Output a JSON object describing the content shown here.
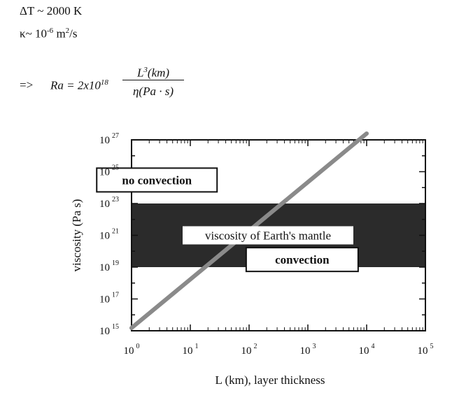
{
  "header": {
    "delta_t": "ΔT ~ 2000 K",
    "kappa_base": "κ~ 10",
    "kappa_exp": "-6",
    "kappa_unit": " m",
    "kappa_unit_exp": "2",
    "kappa_unit_tail": "/s",
    "formula_arrow": "=>",
    "formula_lhs": "Ra = 2x10",
    "formula_lhs_exp": "18",
    "formula_num_a": "L",
    "formula_num_exp": "3",
    "formula_num_b": "(km)",
    "formula_den": "η(Pa · s)"
  },
  "chart_data": {
    "type": "line",
    "title": "",
    "xlabel": "L (km), layer thickness",
    "ylabel": "viscosity (Pa s)",
    "xscale": "log",
    "yscale": "log",
    "xlim": [
      1,
      100000
    ],
    "ylim": [
      1000000000000000.0,
      1e+27
    ],
    "x_ticks": [
      {
        "base": "10",
        "exp": "0"
      },
      {
        "base": "10",
        "exp": "1"
      },
      {
        "base": "10",
        "exp": "2"
      },
      {
        "base": "10",
        "exp": "3"
      },
      {
        "base": "10",
        "exp": "4"
      },
      {
        "base": "10",
        "exp": "5"
      }
    ],
    "y_ticks": [
      {
        "base": "10",
        "exp": "15",
        "value": 1000000000000000.0
      },
      {
        "base": "10",
        "exp": "17",
        "value": 1e+17
      },
      {
        "base": "10",
        "exp": "19",
        "value": 1e+19
      },
      {
        "base": "10",
        "exp": "21",
        "value": 1e+21
      },
      {
        "base": "10",
        "exp": "23",
        "value": 1e+23
      },
      {
        "base": "10",
        "exp": "25",
        "value": 1e+25
      },
      {
        "base": "10",
        "exp": "27",
        "value": 1e+27
      }
    ],
    "series": [
      {
        "x": [
          1,
          10000
        ],
        "y": [
          1500000000000000.0,
          2.5e+27
        ],
        "color": "#8a8a8a"
      }
    ],
    "band": {
      "label": "viscosity of Earth's mantle",
      "y_range": [
        1e+19,
        1e+23
      ],
      "color": "#2b2b2b"
    },
    "annotations": [
      {
        "text": "no convection",
        "x": 2.7,
        "y": 3e+24
      },
      {
        "text": "convection",
        "x": 800,
        "y": 3e+19
      }
    ],
    "grid": false
  }
}
